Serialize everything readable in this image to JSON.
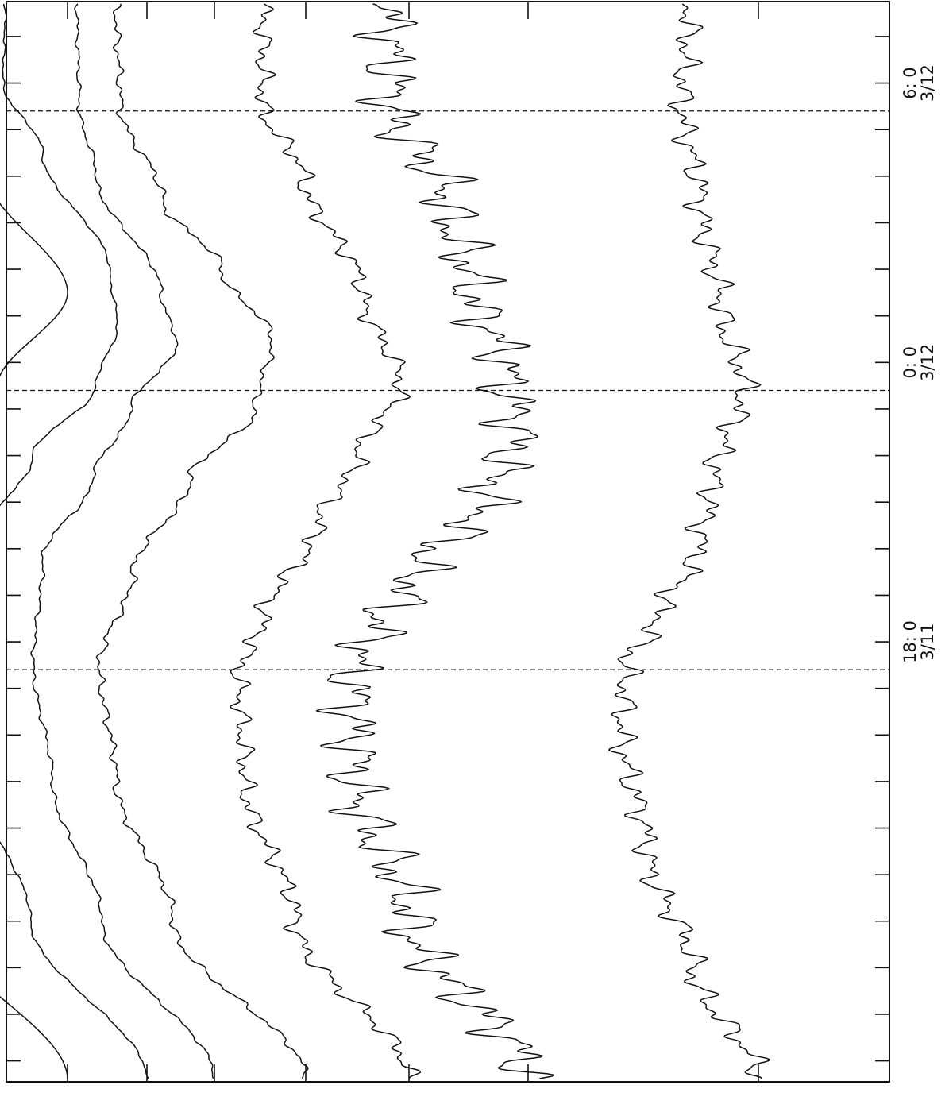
{
  "chart_data": {
    "type": "line",
    "orientation": "rotated-90",
    "title": "",
    "xlabel": "",
    "ylabel": "",
    "grid": false,
    "legend": "none",
    "x_ticks": [
      {
        "time": "18: 0",
        "date": "3/11"
      },
      {
        "time": "0: 0",
        "date": "3/12"
      },
      {
        "time": "6: 0",
        "date": "3/12"
      }
    ],
    "x_tick_hours": [
      18,
      24,
      30
    ],
    "x_range_hours": [
      8.55,
      31.75
    ],
    "minor_tick_every_hours": 1,
    "dashed_reference_hours": [
      17.4,
      23.4,
      29.4
    ],
    "series": [
      {
        "shape": [
          [
            8.6,
            0.0
          ],
          [
            12,
            0.58
          ],
          [
            15,
            0.86
          ],
          [
            17.6,
            0.94
          ],
          [
            20,
            0.92
          ],
          [
            22,
            0.67
          ],
          [
            23.5,
            0.32
          ],
          [
            25.5,
            0.0
          ],
          [
            28,
            0.36
          ],
          [
            29.5,
            0.72
          ],
          [
            31.5,
            0.76
          ]
        ],
        "ripple": 0.0
      },
      {
        "shape": [
          [
            8.6,
            0.0
          ],
          [
            12,
            0.59
          ],
          [
            15,
            0.85
          ],
          [
            17.5,
            0.92
          ],
          [
            20,
            0.89
          ],
          [
            22,
            0.58
          ],
          [
            23.5,
            0.26
          ],
          [
            24.8,
            0.15
          ],
          [
            26,
            0.19
          ],
          [
            28.5,
            0.53
          ],
          [
            30,
            0.73
          ],
          [
            31.5,
            0.72
          ]
        ],
        "ripple": 0.004
      },
      {
        "shape": [
          [
            8.6,
            0.0
          ],
          [
            12,
            0.59
          ],
          [
            15,
            0.85
          ],
          [
            17.5,
            0.95
          ],
          [
            19.8,
            0.9
          ],
          [
            21.5,
            0.64
          ],
          [
            23,
            0.44
          ],
          [
            24.4,
            0.2
          ],
          [
            25.5,
            0.28
          ],
          [
            28,
            0.62
          ],
          [
            29.5,
            0.71
          ],
          [
            31.5,
            0.72
          ]
        ],
        "ripple": 0.007
      },
      {
        "shape": [
          [
            8.6,
            0.0
          ],
          [
            12,
            0.63
          ],
          [
            15,
            0.9
          ],
          [
            17.5,
            0.98
          ],
          [
            19.5,
            0.82
          ],
          [
            21.5,
            0.55
          ],
          [
            23,
            0.24
          ],
          [
            24.5,
            0.16
          ],
          [
            26,
            0.4
          ],
          [
            27.5,
            0.68
          ],
          [
            29.5,
            0.88
          ],
          [
            31.5,
            0.9
          ]
        ],
        "ripple": 0.012
      },
      {
        "shape": [
          [
            8.6,
            0.0
          ],
          [
            12,
            0.56
          ],
          [
            15,
            0.81
          ],
          [
            17.3,
            0.84
          ],
          [
            18.5,
            0.72
          ],
          [
            20.5,
            0.45
          ],
          [
            22,
            0.25
          ],
          [
            23.5,
            0.04
          ],
          [
            25.5,
            0.23
          ],
          [
            28,
            0.52
          ],
          [
            29.5,
            0.72
          ],
          [
            31.5,
            0.72
          ]
        ],
        "ripple": 0.03
      },
      {
        "shape": [
          [
            8.6,
            0.0
          ],
          [
            12,
            0.51
          ],
          [
            15,
            0.75
          ],
          [
            17.4,
            0.76
          ],
          [
            18.2,
            0.66
          ],
          [
            19.5,
            0.48
          ],
          [
            21,
            0.18
          ],
          [
            22.5,
            0.05
          ],
          [
            24,
            0.1
          ],
          [
            25.5,
            0.24
          ],
          [
            27.5,
            0.35
          ],
          [
            29.5,
            0.59
          ],
          [
            31.5,
            0.6
          ]
        ],
        "ripple": 0.08
      },
      {
        "shape": [
          [
            8.6,
            0.0
          ],
          [
            11,
            0.47
          ],
          [
            13.5,
            0.8
          ],
          [
            16,
            0.98
          ],
          [
            17.5,
            0.95
          ],
          [
            18.5,
            0.72
          ],
          [
            20,
            0.43
          ],
          [
            21.5,
            0.32
          ],
          [
            23.5,
            0.1
          ],
          [
            25,
            0.26
          ],
          [
            27.5,
            0.42
          ],
          [
            29.5,
            0.55
          ],
          [
            31.5,
            0.5
          ]
        ],
        "ripple": 0.06
      }
    ],
    "series_baseline_screen_y": [
      1360,
      1360,
      1360,
      1360,
      1360,
      1360,
      1360
    ],
    "series_amplitude_screen": [
      275,
      248,
      240,
      265,
      255,
      290,
      175
    ]
  }
}
